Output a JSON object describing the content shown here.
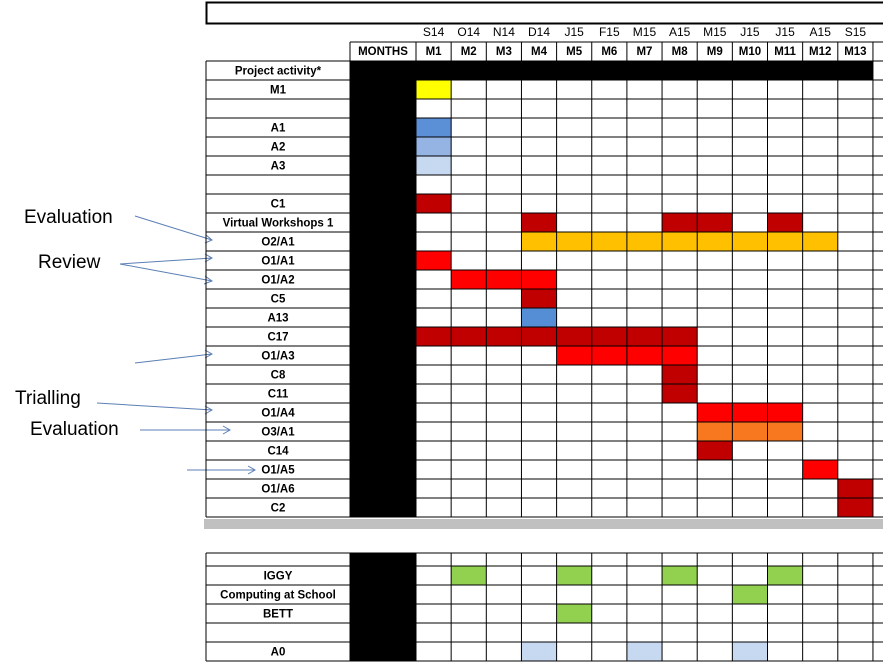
{
  "months_row": [
    "S14",
    "O14",
    "N14",
    "D14",
    "J15",
    "F15",
    "M15",
    "A15",
    "M15",
    "J15",
    "J15",
    "A15",
    "S15"
  ],
  "col_labels": [
    "MONTHS",
    "M1",
    "M2",
    "M3",
    "M4",
    "M5",
    "M6",
    "M7",
    "M8",
    "M9",
    "M10",
    "M11",
    "M12",
    "M13"
  ],
  "sections": [
    {
      "rows": [
        {
          "label": "Project activity*",
          "cells": [
            "#000000",
            "#000000",
            "#000000",
            "#000000",
            "#000000",
            "#000000",
            "#000000",
            "#000000",
            "#000000",
            "#000000",
            "#000000",
            "#000000",
            "#000000"
          ]
        },
        {
          "label": "M1",
          "cells": [
            "#ffff00",
            null,
            null,
            null,
            null,
            null,
            null,
            null,
            null,
            null,
            null,
            null,
            null
          ]
        },
        {
          "label": null,
          "cells": [
            null,
            null,
            null,
            null,
            null,
            null,
            null,
            null,
            null,
            null,
            null,
            null,
            null
          ]
        },
        {
          "label": "A1",
          "cells": [
            "#5b8fd6",
            null,
            null,
            null,
            null,
            null,
            null,
            null,
            null,
            null,
            null,
            null,
            null
          ]
        },
        {
          "label": "A2",
          "cells": [
            "#95b3e3",
            null,
            null,
            null,
            null,
            null,
            null,
            null,
            null,
            null,
            null,
            null,
            null
          ]
        },
        {
          "label": "A3",
          "cells": [
            "#c6d9f1",
            null,
            null,
            null,
            null,
            null,
            null,
            null,
            null,
            null,
            null,
            null,
            null
          ]
        },
        {
          "label": null,
          "cells": [
            null,
            null,
            null,
            null,
            null,
            null,
            null,
            null,
            null,
            null,
            null,
            null,
            null
          ]
        },
        {
          "label": "C1",
          "cells": [
            "#c00000",
            null,
            null,
            null,
            null,
            null,
            null,
            null,
            null,
            null,
            null,
            null,
            null
          ]
        },
        {
          "label": "Virtual Workshops 1",
          "cells": [
            null,
            null,
            null,
            "#c00000",
            null,
            null,
            null,
            "#c00000",
            "#c00000",
            null,
            "#c00000",
            null,
            null
          ]
        },
        {
          "label": "O2/A1",
          "cells": [
            null,
            null,
            null,
            "#ffc000",
            "#ffc000",
            "#ffc000",
            "#ffc000",
            "#ffc000",
            "#ffc000",
            "#ffc000",
            "#ffc000",
            "#ffc000",
            null
          ]
        },
        {
          "label": "O1/A1",
          "cells": [
            "#ff0000",
            null,
            null,
            null,
            null,
            null,
            null,
            null,
            null,
            null,
            null,
            null,
            null
          ]
        },
        {
          "label": "O1/A2",
          "cells": [
            null,
            "#ff0000",
            "#ff0000",
            "#ff0000",
            null,
            null,
            null,
            null,
            null,
            null,
            null,
            null,
            null
          ]
        },
        {
          "label": "C5",
          "cells": [
            null,
            null,
            null,
            "#c00000",
            null,
            null,
            null,
            null,
            null,
            null,
            null,
            null,
            null
          ]
        },
        {
          "label": "A13",
          "cells": [
            null,
            null,
            null,
            "#558ed5",
            null,
            null,
            null,
            null,
            null,
            null,
            null,
            null,
            null
          ]
        },
        {
          "label": "C17",
          "cells": [
            "#c00000",
            "#c00000",
            "#c00000",
            "#c00000",
            "#c00000",
            "#c00000",
            "#c00000",
            "#c00000",
            null,
            null,
            null,
            null,
            null
          ]
        },
        {
          "label": "O1/A3",
          "cells": [
            null,
            null,
            null,
            null,
            "#ff0000",
            "#ff0000",
            "#ff0000",
            "#ff0000",
            null,
            null,
            null,
            null,
            null
          ]
        },
        {
          "label": "C8",
          "cells": [
            null,
            null,
            null,
            null,
            null,
            null,
            null,
            "#c00000",
            null,
            null,
            null,
            null,
            null
          ]
        },
        {
          "label": "C11",
          "cells": [
            null,
            null,
            null,
            null,
            null,
            null,
            null,
            "#c00000",
            null,
            null,
            null,
            null,
            null
          ]
        },
        {
          "label": "O1/A4",
          "cells": [
            null,
            null,
            null,
            null,
            null,
            null,
            null,
            null,
            "#ff0000",
            "#ff0000",
            "#ff0000",
            null,
            null
          ]
        },
        {
          "label": "O3/A1",
          "cells": [
            null,
            null,
            null,
            null,
            null,
            null,
            null,
            null,
            "#f7781e",
            "#f7781e",
            "#f7781e",
            null,
            null
          ]
        },
        {
          "label": "C14",
          "cells": [
            null,
            null,
            null,
            null,
            null,
            null,
            null,
            null,
            "#c00000",
            null,
            null,
            null,
            null
          ]
        },
        {
          "label": "O1/A5",
          "cells": [
            null,
            null,
            null,
            null,
            null,
            null,
            null,
            null,
            null,
            null,
            null,
            "#ff0000",
            null
          ]
        },
        {
          "label": "O1/A6",
          "cells": [
            null,
            null,
            null,
            null,
            null,
            null,
            null,
            null,
            null,
            null,
            null,
            null,
            "#c00000"
          ]
        },
        {
          "label": "C2",
          "cells": [
            null,
            null,
            null,
            null,
            null,
            null,
            null,
            null,
            null,
            null,
            null,
            null,
            "#c00000"
          ]
        }
      ]
    },
    {
      "rows": [
        {
          "label": null,
          "cells": [
            null,
            null,
            null,
            null,
            null,
            null,
            null,
            null,
            null,
            null,
            null,
            null,
            null
          ]
        },
        {
          "label": "IGGY",
          "cells": [
            null,
            "#92d050",
            null,
            null,
            "#92d050",
            null,
            null,
            "#92d050",
            null,
            null,
            "#92d050",
            null,
            null
          ]
        },
        {
          "label": "Computing at School",
          "cells": [
            null,
            null,
            null,
            null,
            null,
            null,
            null,
            null,
            null,
            "#92d050",
            null,
            null,
            null
          ]
        },
        {
          "label": "BETT",
          "cells": [
            null,
            null,
            null,
            null,
            "#92d050",
            null,
            null,
            null,
            null,
            null,
            null,
            null,
            null
          ]
        },
        {
          "label": null,
          "cells": [
            null,
            null,
            null,
            null,
            null,
            null,
            null,
            null,
            null,
            null,
            null,
            null,
            null
          ]
        },
        {
          "label": "A0",
          "cells": [
            null,
            null,
            null,
            "#c6d9f1",
            null,
            null,
            "#c6d9f1",
            null,
            null,
            "#c6d9f1",
            null,
            null,
            null
          ]
        }
      ]
    }
  ],
  "annotations": [
    "Evaluation",
    "Review",
    "Trialling",
    "Evaluation"
  ]
}
